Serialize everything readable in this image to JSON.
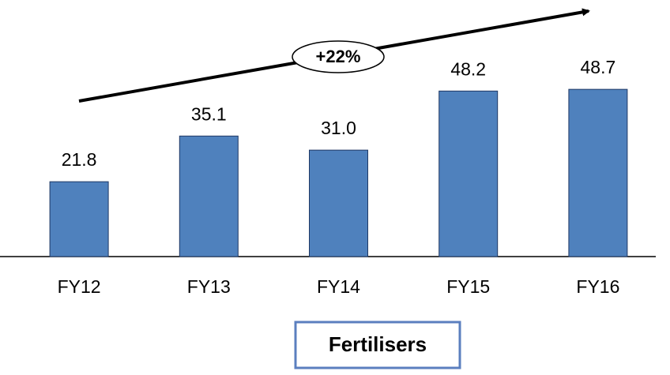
{
  "chart_data": {
    "type": "bar",
    "categories": [
      "FY12",
      "FY13",
      "FY14",
      "FY15",
      "FY16"
    ],
    "values": [
      21.8,
      35.1,
      31.0,
      48.2,
      48.7
    ],
    "value_labels": [
      "21.8",
      "35.1",
      "31.0",
      "48.2",
      "48.7"
    ],
    "color": "#4f81bd",
    "ylim": [
      0,
      60
    ],
    "annotation": "+22%",
    "caption": "Fertilisers"
  }
}
